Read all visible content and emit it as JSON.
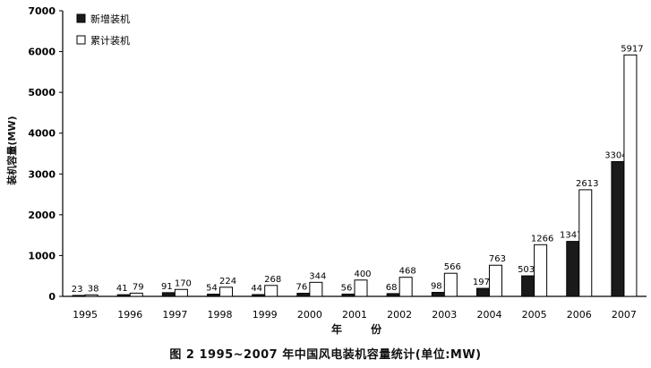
{
  "caption": "图 2 1995~2007 年中国风电装机容量统计(单位:MW)",
  "chart_data": {
    "type": "bar",
    "title": "",
    "xlabel": "年 份",
    "ylabel": "装机容量(MW)",
    "categories": [
      "1995",
      "1996",
      "1997",
      "1998",
      "1999",
      "2000",
      "2001",
      "2002",
      "2003",
      "2004",
      "2005",
      "2006",
      "2007"
    ],
    "series": [
      {
        "name": "新增装机",
        "color": "#1a1a1a",
        "values": [
          23,
          41,
          91,
          54,
          44,
          76,
          56,
          68,
          98,
          197,
          503,
          1347,
          3304
        ]
      },
      {
        "name": "累计装机",
        "color": "#ffffff",
        "values": [
          38,
          79,
          170,
          224,
          268,
          344,
          400,
          468,
          566,
          763,
          1266,
          2613,
          5917
        ]
      }
    ],
    "ylim": [
      0,
      7000
    ],
    "yticks": [
      0,
      1000,
      2000,
      3000,
      4000,
      5000,
      6000,
      7000
    ],
    "grid": false,
    "legend_position": "top-left"
  }
}
